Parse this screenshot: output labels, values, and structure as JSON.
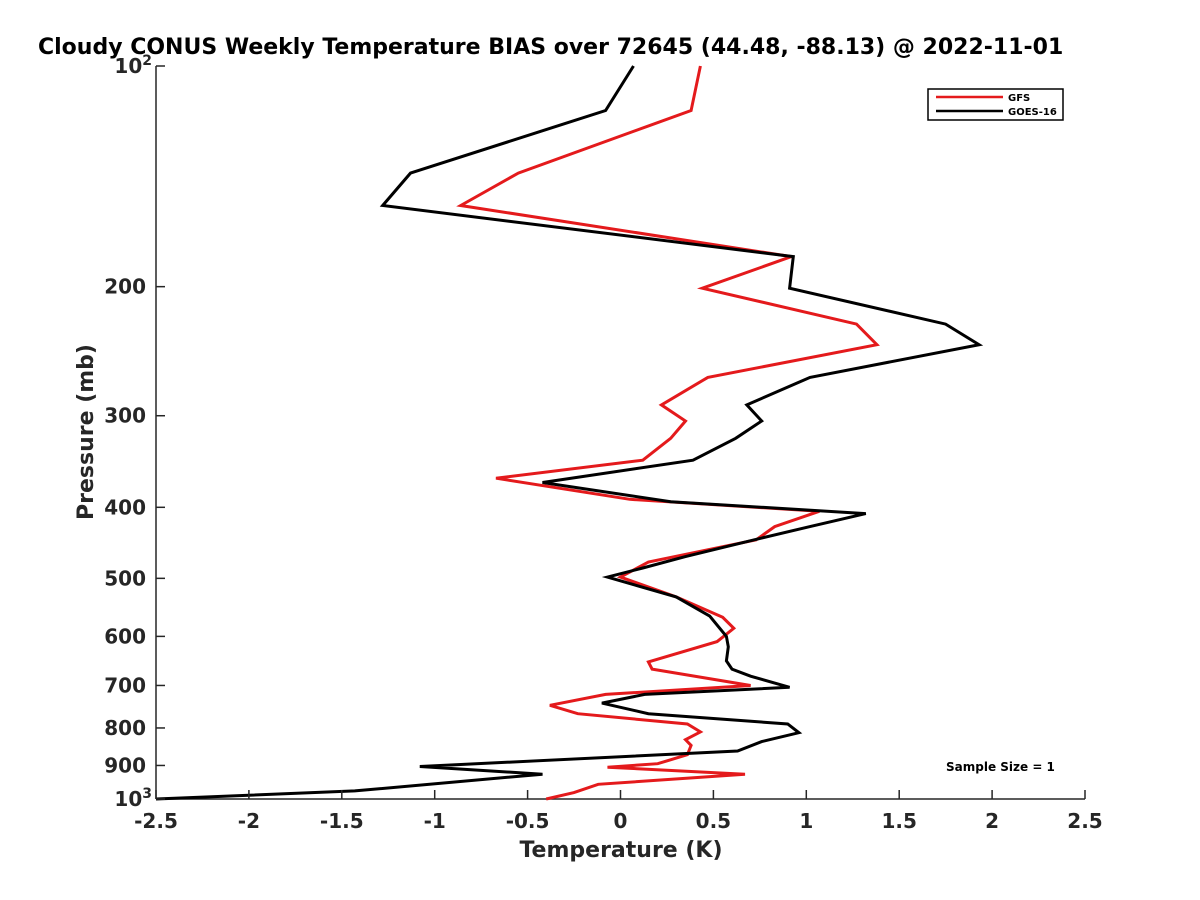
{
  "chart_data": {
    "type": "line",
    "title": "Cloudy CONUS Weekly Temperature BIAS over 72645 (44.48, -88.13) @ 2022-11-01",
    "xlabel": "Temperature (K)",
    "ylabel": "Pressure (mb)",
    "xlim": [
      -2.5,
      2.5
    ],
    "ylim": [
      100,
      1000
    ],
    "y_scale": "log",
    "y_reversed": true,
    "grid": false,
    "legend_position": "top-right",
    "x_ticks": [
      {
        "value": -2.5,
        "label": "-2.5"
      },
      {
        "value": -2,
        "label": "-2"
      },
      {
        "value": -1.5,
        "label": "-1.5"
      },
      {
        "value": -1,
        "label": "-1"
      },
      {
        "value": -0.5,
        "label": "-0.5"
      },
      {
        "value": 0,
        "label": "0"
      },
      {
        "value": 0.5,
        "label": "0.5"
      },
      {
        "value": 1,
        "label": "1"
      },
      {
        "value": 1.5,
        "label": "1.5"
      },
      {
        "value": 2,
        "label": "2"
      },
      {
        "value": 2.5,
        "label": "2.5"
      }
    ],
    "y_ticks": [
      {
        "value": 100,
        "label": "10",
        "exp": "2"
      },
      {
        "value": 200,
        "label": "200"
      },
      {
        "value": 300,
        "label": "300"
      },
      {
        "value": 400,
        "label": "400"
      },
      {
        "value": 500,
        "label": "500"
      },
      {
        "value": 600,
        "label": "600"
      },
      {
        "value": 700,
        "label": "700"
      },
      {
        "value": 800,
        "label": "800"
      },
      {
        "value": 900,
        "label": "900"
      },
      {
        "value": 1000,
        "label": "10",
        "exp": "3"
      }
    ],
    "series": [
      {
        "name": "GFS",
        "color": "#e41a1c",
        "points": [
          [
            0.43,
            100
          ],
          [
            0.38,
            115
          ],
          [
            -0.55,
            140
          ],
          [
            -0.86,
            155
          ],
          [
            0.92,
            182
          ],
          [
            0.44,
            201
          ],
          [
            1.27,
            225
          ],
          [
            1.38,
            240
          ],
          [
            0.47,
            266
          ],
          [
            0.22,
            290
          ],
          [
            0.35,
            305
          ],
          [
            0.27,
            322
          ],
          [
            0.12,
            345
          ],
          [
            -0.67,
            365
          ],
          [
            0.05,
            390
          ],
          [
            1.07,
            405
          ],
          [
            0.83,
            425
          ],
          [
            0.73,
            443
          ],
          [
            0.15,
            475
          ],
          [
            0.0,
            498
          ],
          [
            0.3,
            530
          ],
          [
            0.55,
            565
          ],
          [
            0.61,
            585
          ],
          [
            0.52,
            610
          ],
          [
            0.15,
            650
          ],
          [
            0.17,
            665
          ],
          [
            0.7,
            700
          ],
          [
            -0.08,
            720
          ],
          [
            -0.38,
            745
          ],
          [
            -0.23,
            765
          ],
          [
            0.36,
            790
          ],
          [
            0.43,
            810
          ],
          [
            0.35,
            830
          ],
          [
            0.38,
            845
          ],
          [
            0.36,
            870
          ],
          [
            0.2,
            895
          ],
          [
            -0.07,
            905
          ],
          [
            0.67,
            925
          ],
          [
            -0.12,
            955
          ],
          [
            -0.25,
            980
          ],
          [
            -0.4,
            1000
          ]
        ]
      },
      {
        "name": "GOES-16",
        "color": "#000000",
        "points": [
          [
            0.07,
            100
          ],
          [
            -0.08,
            115
          ],
          [
            -1.13,
            140
          ],
          [
            -1.28,
            155
          ],
          [
            0.93,
            182
          ],
          [
            0.91,
            201
          ],
          [
            1.75,
            225
          ],
          [
            1.93,
            240
          ],
          [
            1.02,
            266
          ],
          [
            0.68,
            290
          ],
          [
            0.76,
            305
          ],
          [
            0.62,
            322
          ],
          [
            0.39,
            345
          ],
          [
            -0.42,
            370
          ],
          [
            0.27,
            393
          ],
          [
            1.32,
            408
          ],
          [
            1.02,
            425
          ],
          [
            0.72,
            443
          ],
          [
            0.35,
            467
          ],
          [
            0.12,
            484
          ],
          [
            -0.07,
            498
          ],
          [
            0.3,
            530
          ],
          [
            0.48,
            563
          ],
          [
            0.57,
            600
          ],
          [
            0.58,
            620
          ],
          [
            0.57,
            648
          ],
          [
            0.6,
            665
          ],
          [
            0.7,
            680
          ],
          [
            0.91,
            704
          ],
          [
            0.13,
            720
          ],
          [
            -0.1,
            740
          ],
          [
            0.15,
            765
          ],
          [
            0.9,
            790
          ],
          [
            0.96,
            812
          ],
          [
            0.76,
            835
          ],
          [
            0.63,
            860
          ],
          [
            -1.08,
            903
          ],
          [
            -0.42,
            925
          ],
          [
            -1.43,
            975
          ],
          [
            -2.5,
            1000
          ]
        ]
      }
    ],
    "annotation": "Sample Size = 1"
  }
}
